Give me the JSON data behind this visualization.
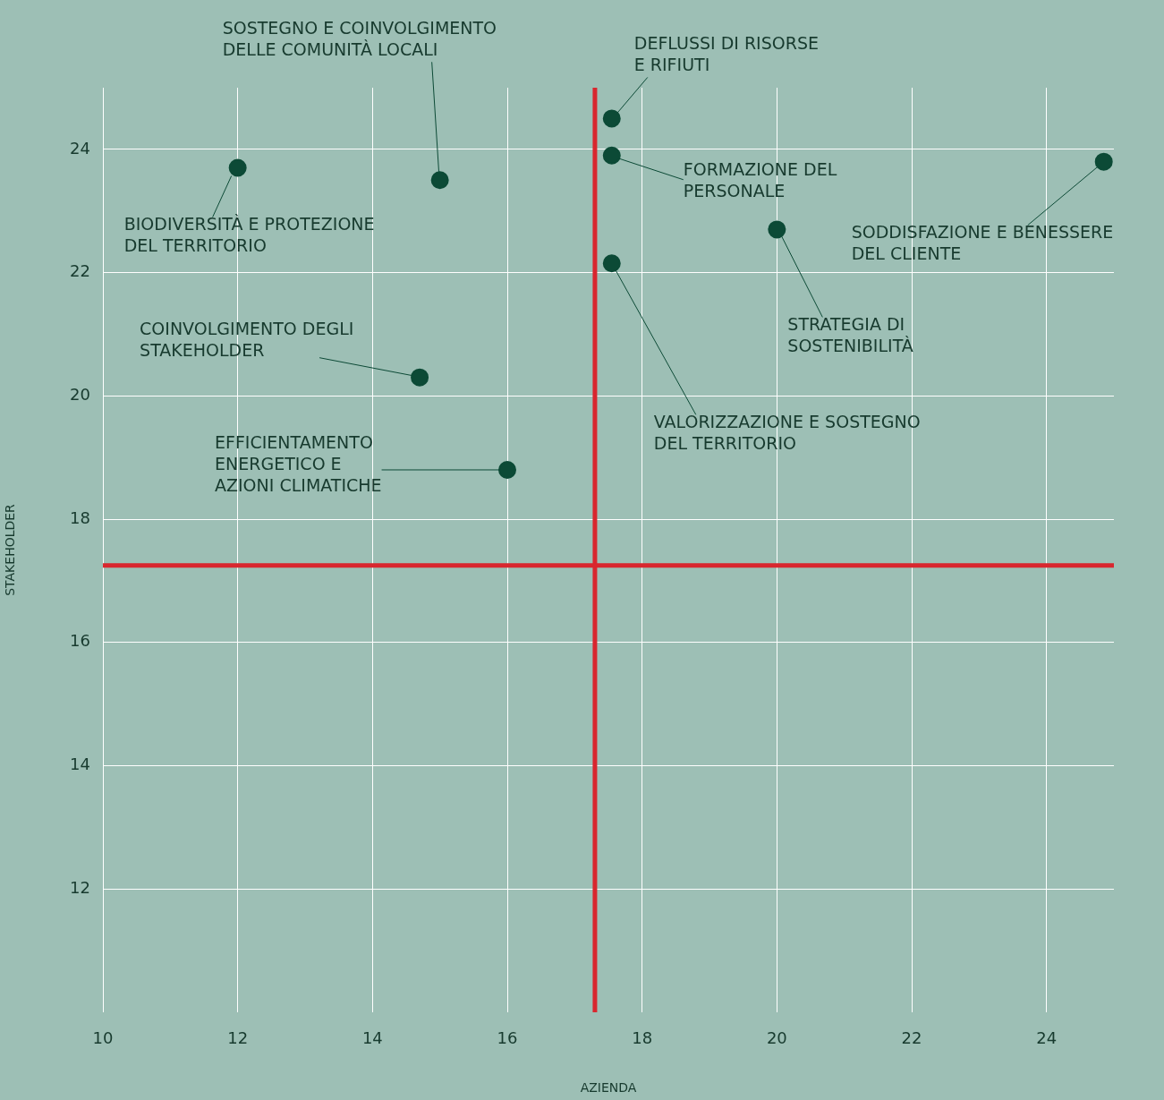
{
  "chart_data": {
    "type": "scatter",
    "xlabel": "AZIENDA",
    "ylabel": "STAKEHOLDER",
    "x": [
      12.0,
      15.0,
      17.55,
      17.55,
      24.85,
      20.0,
      17.55,
      14.7,
      16.0
    ],
    "series": [
      {
        "color": "#0c4a36",
        "values": [
          23.7,
          23.5,
          24.5,
          23.9,
          23.8,
          22.7,
          22.15,
          20.3,
          18.8
        ]
      }
    ],
    "xlim": [
      10,
      25
    ],
    "xticks": [
      10,
      12,
      14,
      16,
      18,
      20,
      22,
      24
    ],
    "ylim": [
      10,
      25
    ],
    "yticks": [
      12,
      14,
      16,
      18,
      20,
      22,
      24
    ],
    "grid": true,
    "legend": false,
    "marker": "circle",
    "ref_lines": [
      {
        "axis": "x",
        "value": 17.3,
        "color": "#d9262e"
      },
      {
        "axis": "y",
        "value": 17.25,
        "color": "#d9262e"
      }
    ],
    "annotations": [
      {
        "text": "BIODIVERSITÀ E PROTEZIONE\nDEL TERRITORIO",
        "x": 12.0,
        "y": 23.7
      },
      {
        "text": "SOSTEGNO E COINVOLGIMENTO\nDELLE COMUNITÀ LOCALI",
        "x": 15.0,
        "y": 23.5
      },
      {
        "text": "DEFLUSSI DI RISORSE\nE RIFIUTI",
        "x": 17.55,
        "y": 24.5
      },
      {
        "text": "FORMAZIONE DEL\nPERSONALE",
        "x": 17.55,
        "y": 23.9
      },
      {
        "text": "SODDISFAZIONE E BENESSERE\nDEL CLIENTE",
        "x": 24.85,
        "y": 23.8
      },
      {
        "text": "STRATEGIA DI\nSOSTENIBILITÀ",
        "x": 20.0,
        "y": 22.7
      },
      {
        "text": "VALORIZZAZIONE E SOSTEGNO\nDEL TERRITORIO",
        "x": 17.55,
        "y": 22.15
      },
      {
        "text": "COINVOLGIMENTO DEGLI\nSTAKEHOLDER",
        "x": 14.7,
        "y": 20.3
      },
      {
        "text": "EFFICIENTAMENTO\nENERGETICO E\nAZIONI CLIMATICHE",
        "x": 16.0,
        "y": 18.8
      }
    ]
  }
}
